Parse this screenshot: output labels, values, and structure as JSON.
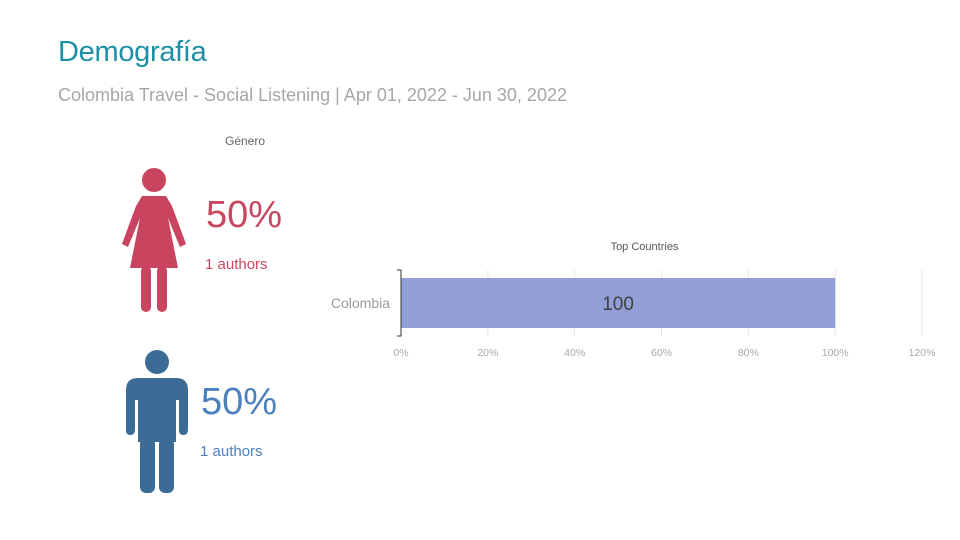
{
  "header": {
    "title": "Demografía",
    "subtitle": "Colombia Travel - Social Listening | Apr 01, 2022 - Jun 30, 2022"
  },
  "gender": {
    "heading": "Género",
    "female": {
      "percent": "50%",
      "authors": "1 authors",
      "icon": "female-person-icon",
      "color": "#c9445e"
    },
    "male": {
      "percent": "50%",
      "authors": "1 authors",
      "icon": "male-person-icon",
      "color": "#3a6c96"
    }
  },
  "chart_data": {
    "type": "bar",
    "orientation": "horizontal",
    "title": "Top Countries",
    "categories": [
      "Colombia"
    ],
    "values": [
      100
    ],
    "data_labels": [
      "100"
    ],
    "xlim": [
      0,
      120
    ],
    "x_ticks": [
      "0%",
      "20%",
      "40%",
      "60%",
      "80%",
      "100%",
      "120%"
    ],
    "bar_color": "#929fd6",
    "grid": "vertical gridlines",
    "legend": "none"
  }
}
